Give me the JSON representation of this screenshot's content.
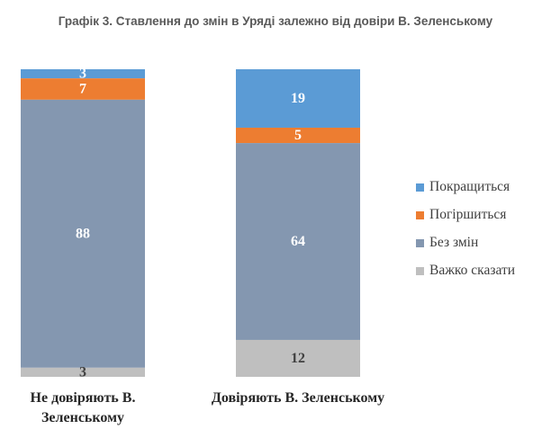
{
  "chart_data": {
    "type": "bar",
    "stacked": true,
    "normalized": true,
    "title": "Графік 3. Ставлення до змін в Уряді залежно від довіри В. Зеленському",
    "categories": [
      "Не довіряють В. Зеленському",
      "Довіряють В. Зеленському"
    ],
    "series": [
      {
        "name": "Покращиться",
        "color": "#5B9BD5",
        "label_color": "#ffffff",
        "values": [
          3,
          19
        ]
      },
      {
        "name": "Погіршиться",
        "color": "#ED7D31",
        "label_color": "#ffffff",
        "values": [
          7,
          5
        ]
      },
      {
        "name": "Без змін",
        "color": "#8497B0",
        "label_color": "#ffffff",
        "values": [
          88,
          64
        ]
      },
      {
        "name": "Важко сказати",
        "color": "#BFBFBF",
        "label_color": "#404040",
        "values": [
          3,
          12
        ]
      }
    ],
    "legend_position": "right",
    "grid": false
  },
  "category_labels": [
    [
      "Не довіряють В.",
      "Зеленському"
    ],
    [
      "Довіряють В. Зеленському"
    ]
  ]
}
